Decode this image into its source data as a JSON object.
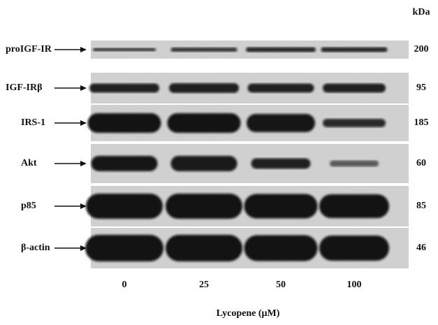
{
  "header": {
    "unit": "kDa"
  },
  "rows": [
    {
      "label": "proIGF-IR",
      "kda": 200
    },
    {
      "label": "IGF-IRβ",
      "kda": 95
    },
    {
      "label": "IRS-1",
      "kda": 185
    },
    {
      "label": "Akt",
      "kda": 60
    },
    {
      "label": "p85",
      "kda": 85
    },
    {
      "label": "β-actin",
      "kda": 46
    }
  ],
  "lanes": [
    0,
    25,
    50,
    100
  ],
  "x_label": "Lycopene (μM)"
}
